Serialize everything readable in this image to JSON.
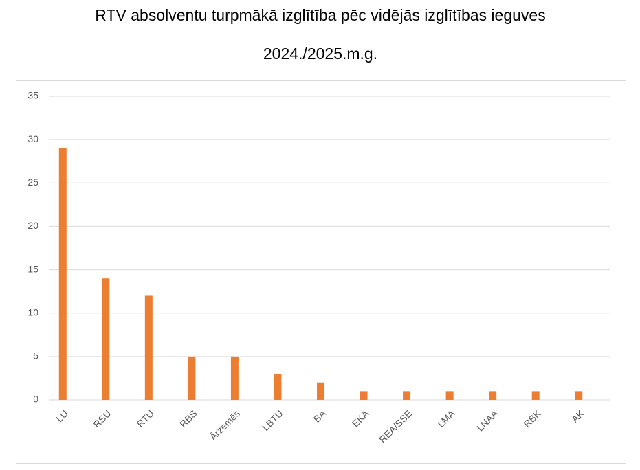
{
  "chart_data": {
    "type": "bar",
    "title": "RTV absolventu turpmākā izglītība pēc vidējās izglītības ieguves",
    "subtitle": "2024./2025.m.g.",
    "categories": [
      "LU",
      "RSU",
      "RTU",
      "RBS",
      "Ārzemēs",
      "LBTU",
      "BA",
      "EKA",
      "REA/SSE",
      "LMA",
      "LNAA",
      "RBK",
      "AK"
    ],
    "values": [
      29,
      14,
      12,
      5,
      5,
      3,
      2,
      1,
      1,
      1,
      1,
      1,
      1
    ],
    "color": "#ed7d31",
    "ylim": [
      0,
      35
    ],
    "yticks": [
      0,
      5,
      10,
      15,
      20,
      25,
      30,
      35
    ],
    "grid": true
  }
}
